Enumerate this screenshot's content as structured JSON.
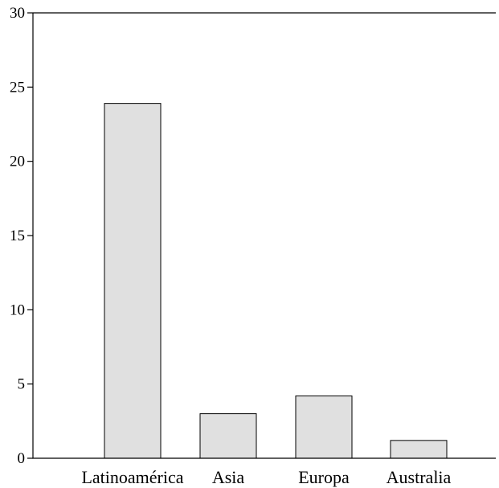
{
  "chart_data": {
    "type": "bar",
    "categories": [
      "Latinoamérica",
      "Asia",
      "Europa",
      "Australia"
    ],
    "values": [
      23.9,
      3.0,
      4.2,
      1.2
    ],
    "title": "",
    "xlabel": "",
    "ylabel": "",
    "ylim": [
      0,
      30
    ],
    "yticks": [
      0,
      5,
      10,
      15,
      20,
      25,
      30
    ],
    "grid": false,
    "bar_color": "#e0e0e0",
    "edge_color": "#000000"
  }
}
